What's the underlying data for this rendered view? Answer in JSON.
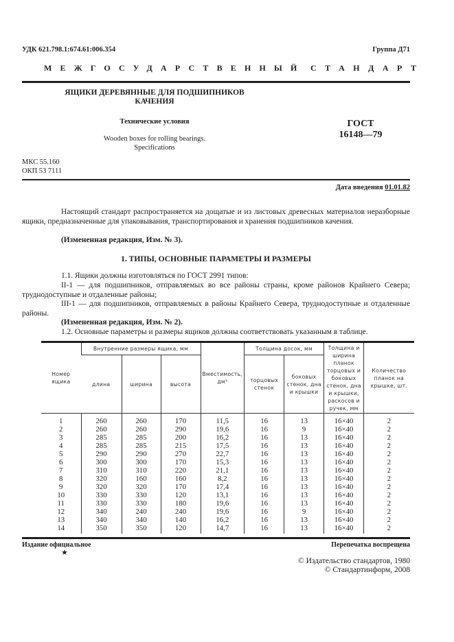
{
  "header": {
    "udk": "УДК 621.798.1:674.61:006.354",
    "group": "Группа Д71",
    "standard_left": "МЕЖГОСУДАРСТВЕННЫЙ",
    "standard_right": "СТАНДАРТ"
  },
  "title": {
    "line1": "ЯЩИКИ ДЕРЕВЯННЫЕ ДЛЯ ПОДШИПНИКОВ",
    "line2": "КАЧЕНИЯ",
    "subtitle": "Технические условия",
    "english1": "Wooden boxes for rolling bearings.",
    "english2": "Specifications",
    "gost_label": "ГОСТ",
    "gost_number": "16148—79",
    "mks": "МКС 55.160",
    "okp": "ОКП 53 7111",
    "date_label": "Дата введения",
    "date_value": "01.01.82"
  },
  "body": {
    "intro": "Настоящий стандарт распространяется на дощатые  и из листовых древесных материалов неразборные ящики, предназначенные для упаковывания, транспортирования и хранения подшипников качения.",
    "amend3": "(Измененная редакция, Изм. № 3).",
    "section1": "1. ТИПЫ, ОСНОВНЫЕ ПАРАМЕТРЫ И РАЗМЕРЫ",
    "p11": "1.1. Ящики должны изготовляться по ГОСТ 2991 типов:",
    "p11a": "II-1 — для подшипников, отправляемых во все районы страны, кроме районов Крайнего Севера; труднодоступные и отдаленные районы;",
    "p11b": "III-1 — для подшипников, отправляемых в районы Крайнего Севера, труднодоступные и отдаленные районы.",
    "amend2": "(Измененная редакция, Изм. № 2).",
    "p12": "1.2. Основные параметры и размеры ящиков должны соответствовать указанным в таблице."
  },
  "table": {
    "h_number": "Номер ящика",
    "h_inner": "Внутренние размеры ящика, мм",
    "h_length": "длина",
    "h_width": "ширина",
    "h_height": "высота",
    "h_capacity": "Вместимость, дм³",
    "h_board": "Толщина досок, мм",
    "h_end": "торцовых стенок",
    "h_side": "боковых стенок, дна и крышки",
    "h_slats": "Толщина и ширина планок торцовых и боковых стенок, дна и крышки, раскосов и ручек, мм",
    "h_count": "Количество планок на крышке, шт.",
    "rows": [
      [
        "1",
        "260",
        "260",
        "170",
        "11,5",
        "16",
        "13",
        "16×40",
        "2"
      ],
      [
        "2",
        "260",
        "260",
        "290",
        "19,6",
        "16",
        "9",
        "16×40",
        "2"
      ],
      [
        "3",
        "285",
        "285",
        "200",
        "16,2",
        "16",
        "13",
        "16×40",
        "2"
      ],
      [
        "4",
        "285",
        "285",
        "215",
        "17,5",
        "16",
        "13",
        "16×40",
        "2"
      ],
      [
        "5",
        "290",
        "290",
        "270",
        "22,7",
        "16",
        "13",
        "16×40",
        "2"
      ],
      [
        "6",
        "300",
        "300",
        "170",
        "15,3",
        "16",
        "13",
        "16×40",
        "2"
      ],
      [
        "7",
        "310",
        "310",
        "220",
        "21,1",
        "16",
        "13",
        "16×40",
        "2"
      ],
      [
        "8",
        "320",
        "160",
        "160",
        "8,2",
        "16",
        "13",
        "16×40",
        "2"
      ],
      [
        "9",
        "320",
        "320",
        "170",
        "17,4",
        "16",
        "13",
        "16×40",
        "2"
      ],
      [
        "10",
        "330",
        "330",
        "120",
        "13,1",
        "16",
        "13",
        "16×40",
        "2"
      ],
      [
        "11",
        "330",
        "330",
        "180",
        "19,6",
        "16",
        "13",
        "16×40",
        "2"
      ],
      [
        "12",
        "340",
        "240",
        "240",
        "19,6",
        "16",
        "9",
        "16×40",
        "2"
      ],
      [
        "13",
        "340",
        "340",
        "140",
        "16,2",
        "16",
        "13",
        "16×40",
        "2"
      ],
      [
        "14",
        "350",
        "350",
        "120",
        "14,7",
        "16",
        "13",
        "16×40",
        "2"
      ]
    ]
  },
  "footer": {
    "official": "Издание официальное",
    "star": "★",
    "reprint": "Перепечатка воспрещена",
    "copyright1": "© Издательство стандартов, 1980",
    "copyright2": "© Стандартинформ, 2008"
  }
}
